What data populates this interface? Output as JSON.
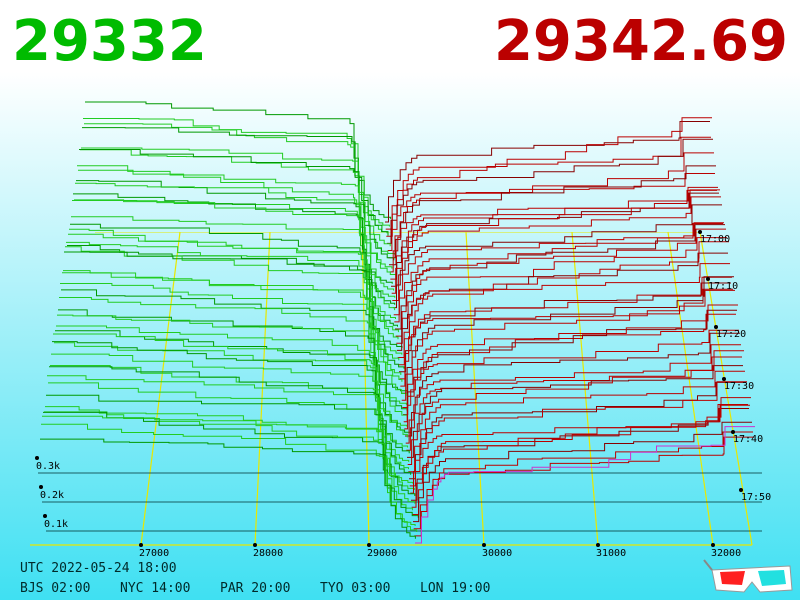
{
  "header": {
    "bid": "29332",
    "ask": "29342.69"
  },
  "price_axis": {
    "ticks": [
      "27000",
      "28000",
      "29000",
      "30000",
      "31000",
      "32000"
    ]
  },
  "time_axis": {
    "ticks": [
      "17:00",
      "17:10",
      "17:20",
      "17:30",
      "17:40",
      "17:50"
    ]
  },
  "volume_axis": {
    "ticks": [
      "0.3k",
      "0.2k",
      "0.1k"
    ]
  },
  "footer": {
    "utc": "UTC 2022-05-24 18:00",
    "zones": [
      "BJS 02:00",
      "NYC 14:00",
      "PAR 20:00",
      "TYO 03:00",
      "LON 19:00"
    ]
  }
}
